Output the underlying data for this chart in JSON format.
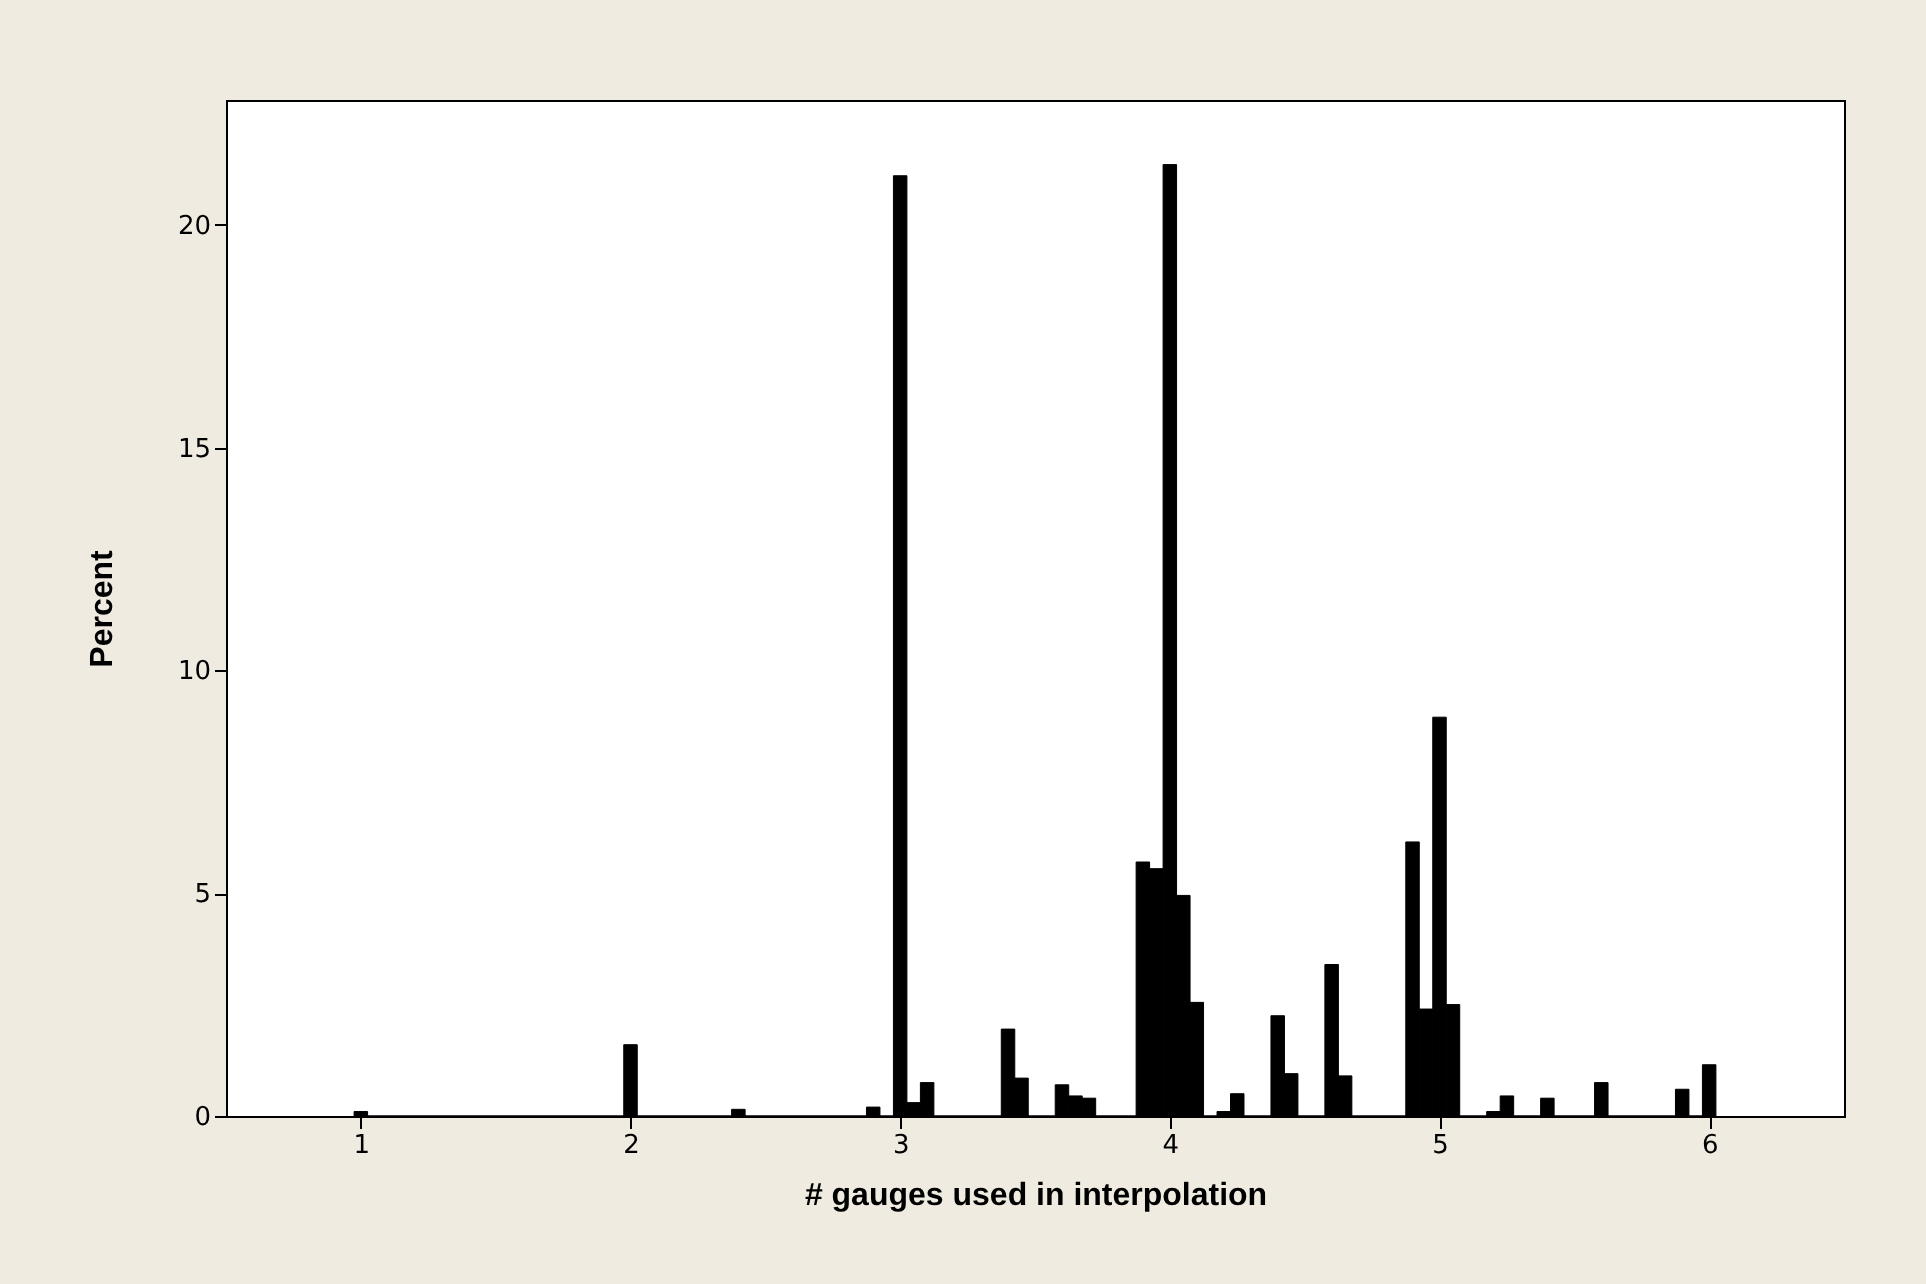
{
  "chart_data": {
    "type": "histogram",
    "xlabel": "# gauges used in interpolation",
    "ylabel": "Percent",
    "color": "#000000",
    "bins": [
      0.975,
      1.025,
      1.975,
      2.025,
      2.375,
      2.425,
      2.875,
      2.925,
      2.975,
      3.025,
      3.075,
      3.125,
      3.375,
      3.425,
      3.475,
      3.575,
      3.625,
      3.675,
      3.725,
      3.875,
      3.925,
      3.975,
      4.025,
      4.075,
      4.125,
      4.175,
      4.225,
      4.275,
      4.375,
      4.425,
      4.475,
      4.575,
      4.625,
      4.675,
      4.875,
      4.925,
      4.975,
      5.025,
      5.075,
      5.175,
      5.225,
      5.275,
      5.375,
      5.425,
      5.575,
      5.625,
      5.875,
      5.925,
      5.975,
      6.025
    ],
    "values": [
      0.1,
      0,
      1.6,
      0,
      0.15,
      0,
      0.2,
      0,
      21.1,
      0.3,
      0.75,
      0,
      1.95,
      0.85,
      0,
      0.7,
      0.45,
      0.4,
      0,
      5.7,
      5.55,
      21.35,
      4.95,
      2.55,
      0,
      0.1,
      0.5,
      0,
      2.25,
      0.95,
      0,
      3.4,
      0.9,
      0,
      6.15,
      2.4,
      8.95,
      2.5,
      0,
      0.1,
      0.45,
      0,
      0.4,
      0,
      0.75,
      0,
      0.6,
      0,
      1.15
    ],
    "xlim": [
      0.5,
      6.5
    ],
    "ylim": [
      0,
      22.8
    ],
    "xticks": [
      1,
      2,
      3,
      4,
      5,
      6
    ],
    "yticks": [
      0,
      5,
      10,
      15,
      20
    ]
  }
}
